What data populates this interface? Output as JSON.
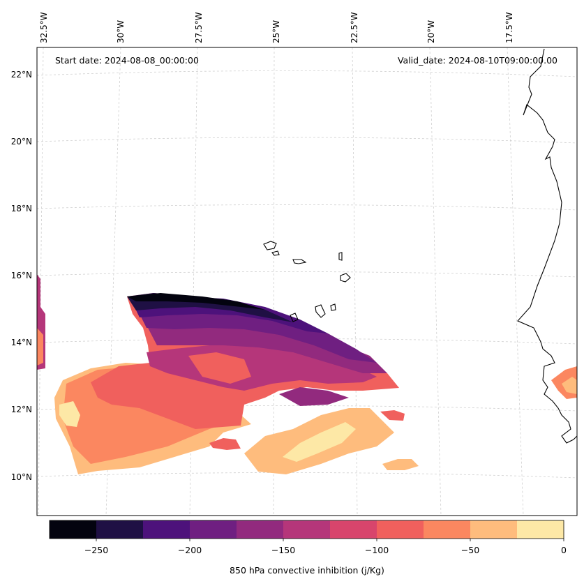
{
  "map": {
    "start_date": "Start date: 2024-08-08_00:00:00",
    "valid_date": "Valid_date: 2024-08-10T09:00:00.00",
    "lon_labels": [
      "32.5°W",
      "30°W",
      "27.5°W",
      "25°W",
      "22.5°W",
      "20°W",
      "17.5°W"
    ],
    "lat_labels": [
      "22°N",
      "20°N",
      "18°N",
      "16°N",
      "14°N",
      "12°N",
      "10°N"
    ],
    "gridlines": true
  },
  "colorbar": {
    "label": "850 hPa convective inhibition (j/Kg)",
    "ticks": [
      "−250",
      "−200",
      "−150",
      "−100",
      "−50",
      "0"
    ],
    "levels": [
      -275,
      -250,
      -225,
      -200,
      -175,
      -150,
      -125,
      -100,
      -75,
      -50,
      -25,
      0
    ],
    "colors": [
      "#03030f",
      "#1f1044",
      "#4d127b",
      "#6f1f81",
      "#922a7e",
      "#b5367a",
      "#d8456c",
      "#f0605d",
      "#fb8760",
      "#febc7d",
      "#fde8a6"
    ]
  }
}
